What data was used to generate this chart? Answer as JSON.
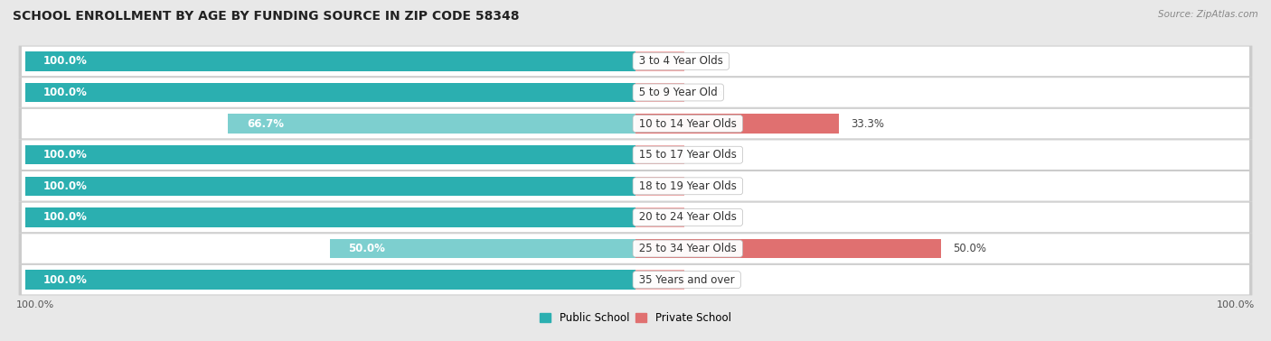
{
  "title": "SCHOOL ENROLLMENT BY AGE BY FUNDING SOURCE IN ZIP CODE 58348",
  "source": "Source: ZipAtlas.com",
  "categories": [
    "3 to 4 Year Olds",
    "5 to 9 Year Old",
    "10 to 14 Year Olds",
    "15 to 17 Year Olds",
    "18 to 19 Year Olds",
    "20 to 24 Year Olds",
    "25 to 34 Year Olds",
    "35 Years and over"
  ],
  "public_values": [
    100.0,
    100.0,
    66.7,
    100.0,
    100.0,
    100.0,
    50.0,
    100.0
  ],
  "private_values": [
    0.0,
    0.0,
    33.3,
    0.0,
    0.0,
    0.0,
    50.0,
    0.0
  ],
  "public_color_full": "#2BAFB0",
  "public_color_partial": "#7DCFCF",
  "private_color_full": "#E07070",
  "private_color_light": "#F0AAAA",
  "bg_color": "#e8e8e8",
  "row_color": "#ffffff",
  "title_fontsize": 10,
  "label_fontsize": 8.5,
  "value_fontsize": 8.5,
  "axis_label": "100.0%",
  "legend_public": "Public School",
  "legend_private": "Private School",
  "max_val": 100.0,
  "min_stub": 8.0
}
